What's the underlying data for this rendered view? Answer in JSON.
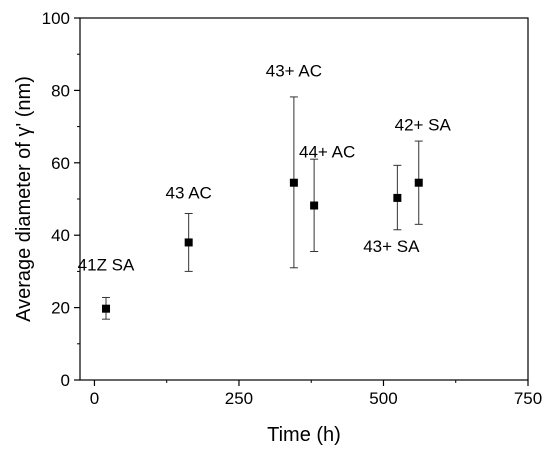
{
  "chart_data": {
    "type": "scatter",
    "xlabel": "Time (h)",
    "ylabel": "Average diameter of γ' (nm)",
    "xlim": [
      -25,
      750
    ],
    "ylim": [
      0,
      100
    ],
    "x_ticks": [
      0,
      250,
      500,
      750
    ],
    "y_ticks": [
      0,
      20,
      40,
      60,
      80,
      100
    ],
    "x_tick_labels": [
      "0",
      "250",
      "500",
      "750"
    ],
    "y_tick_labels": [
      "0",
      "20",
      "40",
      "60",
      "80",
      "100"
    ],
    "grid": false,
    "marker": "square",
    "points": [
      {
        "label": "41Z SA",
        "x": 20,
        "y": 19.7,
        "err_low": 16.8,
        "err_high": 22.8
      },
      {
        "label": "43 AC",
        "x": 163,
        "y": 38.0,
        "err_low": 30.0,
        "err_high": 46.0
      },
      {
        "label": "43+ AC",
        "x": 345,
        "y": 54.5,
        "err_low": 31.0,
        "err_high": 78.2
      },
      {
        "label": "44+ AC",
        "x": 380,
        "y": 48.2,
        "err_low": 35.5,
        "err_high": 61.0
      },
      {
        "label": "43+ SA",
        "x": 524,
        "y": 50.3,
        "err_low": 41.5,
        "err_high": 59.3
      },
      {
        "label": "42+ SA",
        "x": 561,
        "y": 54.5,
        "err_low": 43.0,
        "err_high": 66.0
      }
    ]
  }
}
